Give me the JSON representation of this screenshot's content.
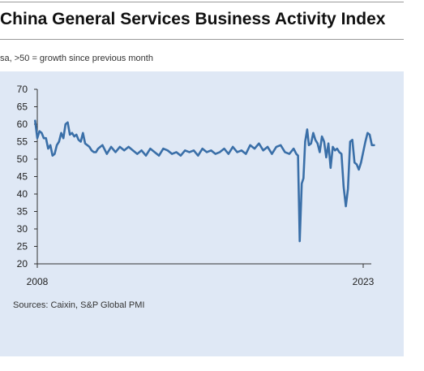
{
  "chart_data": {
    "type": "line",
    "title": "China General Services Business Activity Index",
    "subtitle": "sa, >50 = growth since previous month",
    "source": "Sources: Caixin, S&P Global PMI",
    "xlabel": "",
    "ylabel": "",
    "ylim": [
      20,
      70
    ],
    "yticks": [
      20,
      25,
      30,
      35,
      40,
      45,
      50,
      55,
      60,
      65,
      70
    ],
    "xlim": [
      2008.0,
      2023.0
    ],
    "xtick_labels": [
      {
        "value": 2008,
        "label": "2008"
      },
      {
        "value": 2023,
        "label": "2023"
      }
    ],
    "grid": false,
    "legend": "none",
    "line_color": "#3a6fa8",
    "series": [
      {
        "x": [
          2007.9,
          2008.0,
          2008.1,
          2008.2,
          2008.3,
          2008.4,
          2008.5,
          2008.6,
          2008.7,
          2008.8,
          2008.9,
          2009.0,
          2009.1,
          2009.2,
          2009.3,
          2009.4,
          2009.5,
          2009.6,
          2009.7,
          2009.8,
          2009.9,
          2010.0,
          2010.1,
          2010.2,
          2010.3,
          2010.4,
          2010.5,
          2010.6,
          2010.7,
          2010.8,
          2010.9,
          2011.0,
          2011.2,
          2011.4,
          2011.6,
          2011.8,
          2012.0,
          2012.2,
          2012.4,
          2012.6,
          2012.8,
          2013.0,
          2013.2,
          2013.4,
          2013.6,
          2013.8,
          2014.0,
          2014.2,
          2014.4,
          2014.6,
          2014.8,
          2015.0,
          2015.2,
          2015.4,
          2015.6,
          2015.8,
          2016.0,
          2016.2,
          2016.4,
          2016.6,
          2016.8,
          2017.0,
          2017.2,
          2017.4,
          2017.6,
          2017.8,
          2018.0,
          2018.2,
          2018.4,
          2018.6,
          2018.8,
          2019.0,
          2019.2,
          2019.4,
          2019.6,
          2019.8,
          2019.92,
          2020.0,
          2020.08,
          2020.17,
          2020.25,
          2020.33,
          2020.42,
          2020.5,
          2020.6,
          2020.7,
          2020.8,
          2020.9,
          2021.0,
          2021.1,
          2021.2,
          2021.3,
          2021.4,
          2021.5,
          2021.6,
          2021.7,
          2021.8,
          2021.9,
          2022.0,
          2022.1,
          2022.2,
          2022.3,
          2022.4,
          2022.5,
          2022.6,
          2022.7,
          2022.8,
          2022.9,
          2023.0,
          2023.1,
          2023.2,
          2023.3,
          2023.4,
          2023.5
        ],
        "y": [
          61.0,
          56.0,
          58.0,
          57.5,
          56.0,
          56.0,
          53.0,
          54.0,
          51.0,
          51.5,
          54.0,
          55.0,
          57.5,
          56.0,
          60.0,
          60.5,
          57.0,
          57.5,
          56.5,
          57.0,
          55.5,
          55.0,
          57.5,
          54.5,
          54.0,
          53.5,
          52.5,
          52.0,
          52.0,
          53.0,
          53.5,
          54.0,
          51.5,
          53.5,
          52.0,
          53.5,
          52.5,
          53.5,
          52.5,
          51.5,
          52.5,
          51.0,
          53.0,
          52.0,
          51.0,
          53.0,
          52.5,
          51.5,
          52.0,
          51.0,
          52.5,
          52.0,
          52.5,
          51.0,
          53.0,
          52.0,
          52.5,
          51.5,
          52.0,
          53.0,
          51.5,
          53.5,
          52.0,
          52.5,
          51.5,
          54.0,
          53.0,
          54.5,
          52.5,
          53.5,
          51.5,
          53.5,
          54.0,
          52.0,
          51.5,
          53.0,
          51.5,
          51.0,
          26.5,
          43.0,
          44.5,
          55.0,
          58.5,
          54.0,
          54.5,
          57.5,
          55.5,
          54.5,
          52.0,
          56.5,
          55.0,
          50.5,
          54.5,
          47.5,
          53.5,
          52.5,
          53.0,
          52.0,
          51.5,
          42.0,
          36.5,
          41.5,
          55.0,
          55.5,
          49.0,
          48.5,
          47.0,
          49.0,
          52.0,
          55.0,
          57.5,
          57.0,
          54.0,
          54.0
        ]
      }
    ]
  }
}
